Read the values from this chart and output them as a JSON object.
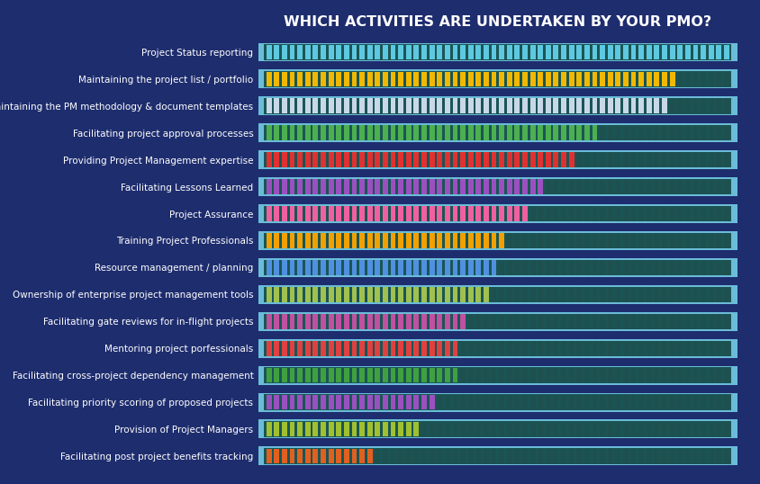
{
  "title": "WHICH ACTIVITIES ARE UNDERTAKEN BY YOUR PMO?",
  "background_color": "#1e2d6e",
  "bar_bg_color": "#1a5555",
  "bar_border_color": "#6bbcd8",
  "empty_tick_color": "#1e5050",
  "categories": [
    "Project Status reporting",
    "Maintaining the project list / portfolio",
    "Maintaining the PM methodology & document templates",
    "Facilitating project approval processes",
    "Providing Project Management expertise",
    "Facilitating Lessons Learned",
    "Project Assurance",
    "Training Project Professionals",
    "Resource management / planning",
    "Ownership of enterprise project management tools",
    "Facilitating gate reviews for in-flight projects",
    "Mentoring project porfessionals",
    "Facilitating cross-project dependency management",
    "Facilitating priority scoring of proposed projects",
    "Provision of Project Managers",
    "Facilitating post project benefits tracking"
  ],
  "values": [
    1.0,
    0.88,
    0.86,
    0.72,
    0.66,
    0.6,
    0.57,
    0.52,
    0.5,
    0.48,
    0.43,
    0.42,
    0.41,
    0.37,
    0.34,
    0.24
  ],
  "colors": [
    "#5ec8e0",
    "#f0b800",
    "#c8d8e8",
    "#4caf50",
    "#e03030",
    "#9b50c0",
    "#f060a0",
    "#f0a000",
    "#5090e0",
    "#a0c050",
    "#c050a0",
    "#e04040",
    "#40a040",
    "#9b50c0",
    "#a0c030",
    "#e06020"
  ],
  "title_color": "#ffffff",
  "label_color": "#ffffff",
  "title_fontsize": 11.5,
  "label_fontsize": 7.5,
  "max_ticks": 60,
  "bar_border_lw": 1.5,
  "outer_border_color": "#6bbcd8"
}
